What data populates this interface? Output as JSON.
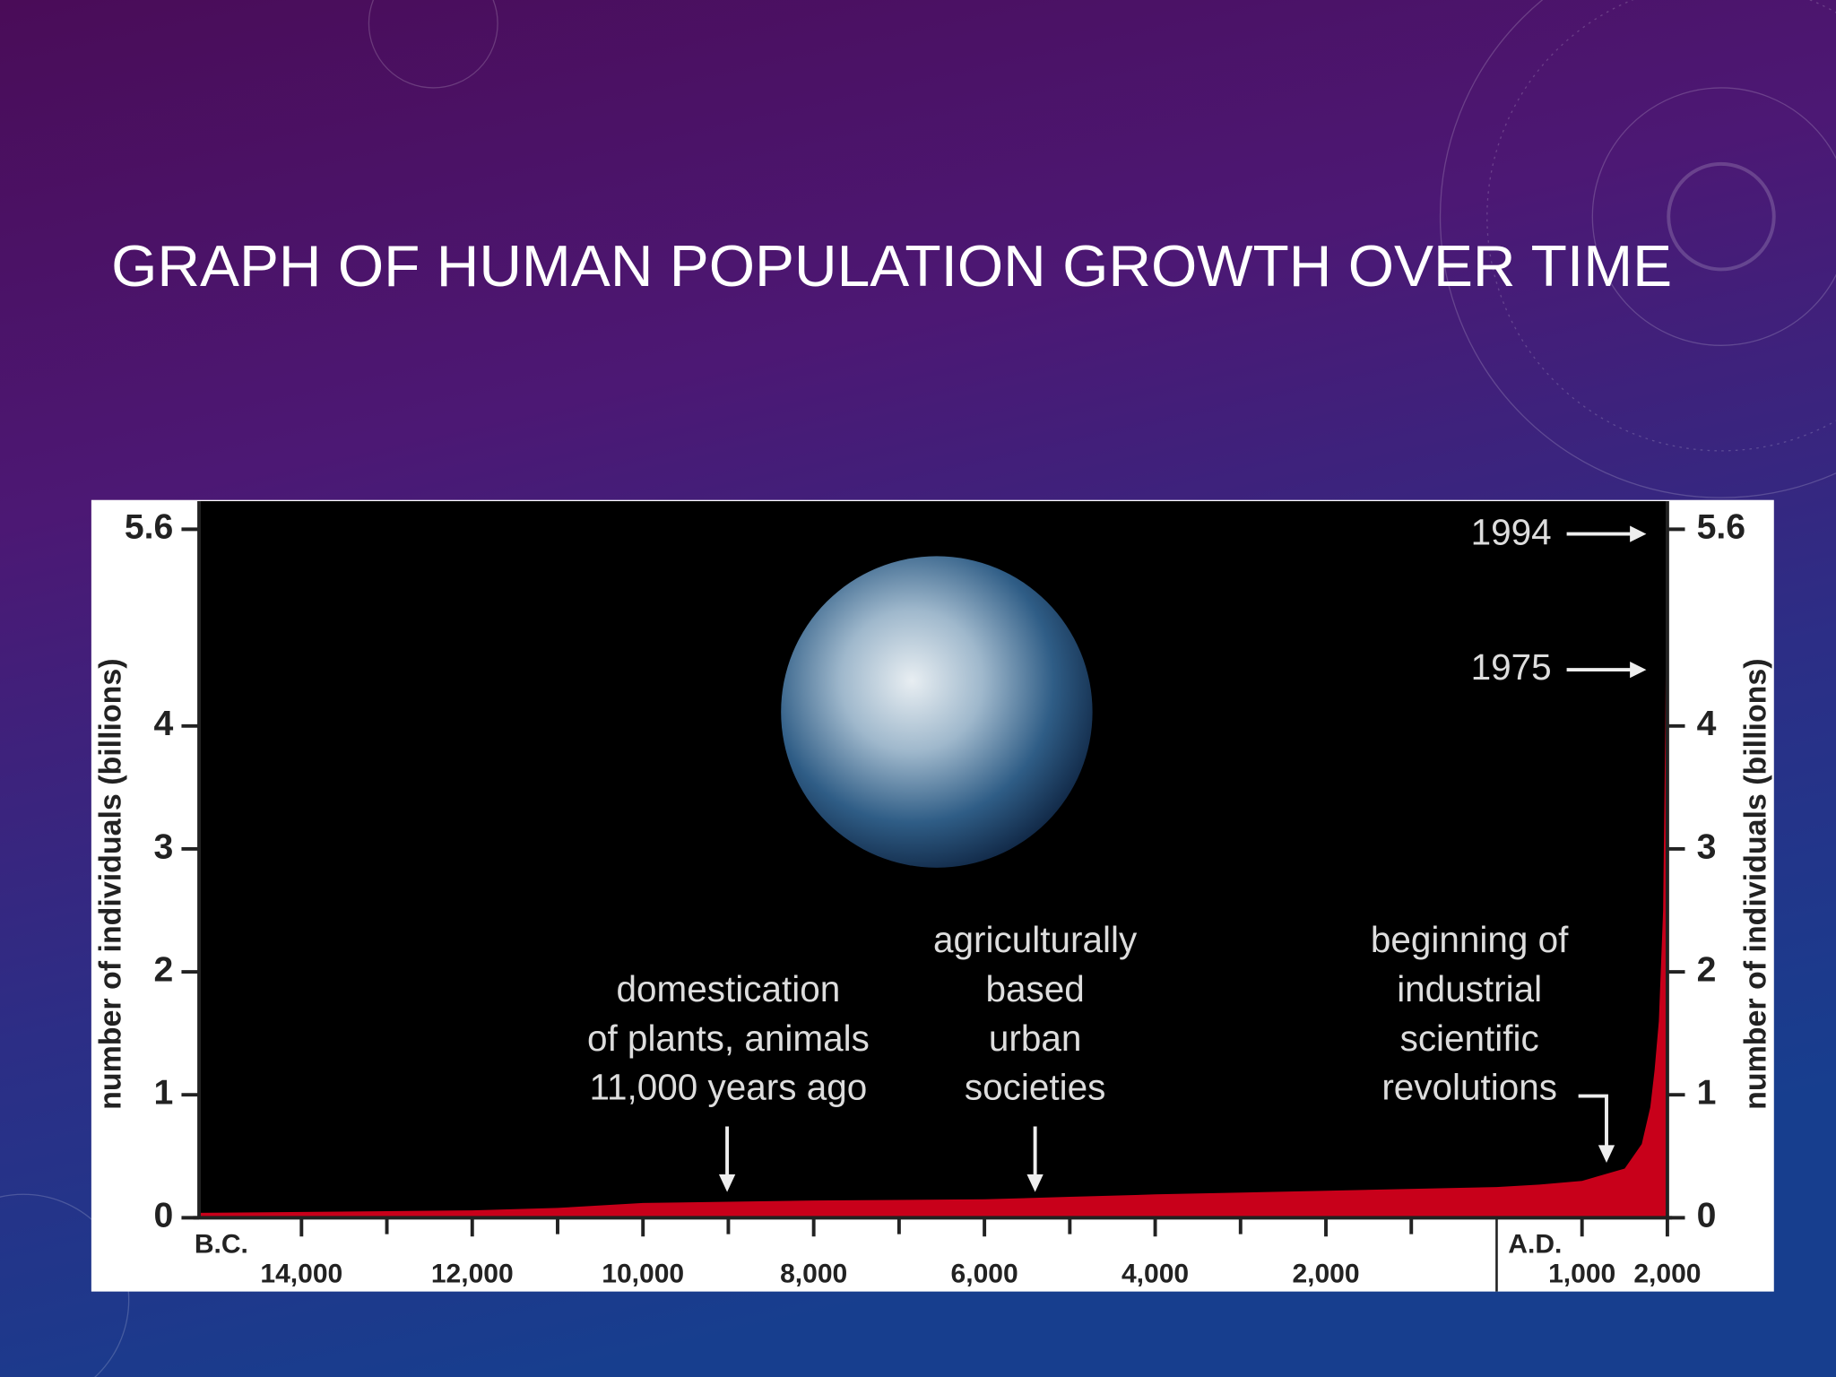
{
  "chart_data": {
    "type": "area",
    "title": "GRAPH OF HUMAN POPULATION GROWTH OVER TIME",
    "ylabel": "number of individuals (billions)",
    "x": [
      -15200,
      -12000,
      -11000,
      -10000,
      -8000,
      -6000,
      -5000,
      -4000,
      -2000,
      0,
      500,
      1000,
      1500,
      1700,
      1800,
      1850,
      1900,
      1950,
      1975,
      1994
    ],
    "values": [
      0.04,
      0.06,
      0.08,
      0.12,
      0.14,
      0.15,
      0.17,
      0.19,
      0.22,
      0.25,
      0.27,
      0.3,
      0.4,
      0.6,
      0.9,
      1.2,
      1.6,
      2.5,
      4,
      5.6
    ],
    "color": "#c8001a",
    "xlim": [
      -15200,
      2000
    ],
    "xticks": [
      {
        "value": -14000,
        "label": "14,000"
      },
      {
        "value": -12000,
        "label": "12,000"
      },
      {
        "value": -10000,
        "label": "10,000"
      },
      {
        "value": -8000,
        "label": "8,000"
      },
      {
        "value": -6000,
        "label": "6,000"
      },
      {
        "value": -4000,
        "label": "4,000"
      },
      {
        "value": -2000,
        "label": "2,000"
      },
      {
        "value": 1000,
        "label": "1,000"
      },
      {
        "value": 2000,
        "label": "2,000"
      }
    ],
    "xminorticks": [
      -13000,
      -11000,
      -9000,
      -7000,
      -5000,
      -3000,
      -1000
    ],
    "era_labels": [
      "B.C.",
      "A.D."
    ],
    "ylim": [
      0,
      5.6
    ],
    "yticks": [
      0,
      1,
      2,
      3,
      4,
      5.6
    ],
    "annotations": [
      {
        "lines": [
          "1994"
        ]
      },
      {
        "lines": [
          "1975"
        ]
      },
      {
        "lines": [
          "domestication",
          "of plants, animals",
          "11,000 years ago"
        ]
      },
      {
        "lines": [
          "agriculturally",
          "based",
          "urban",
          "societies"
        ]
      },
      {
        "lines": [
          "beginning of",
          "industrial",
          "scientific",
          "revolutions"
        ]
      }
    ]
  }
}
